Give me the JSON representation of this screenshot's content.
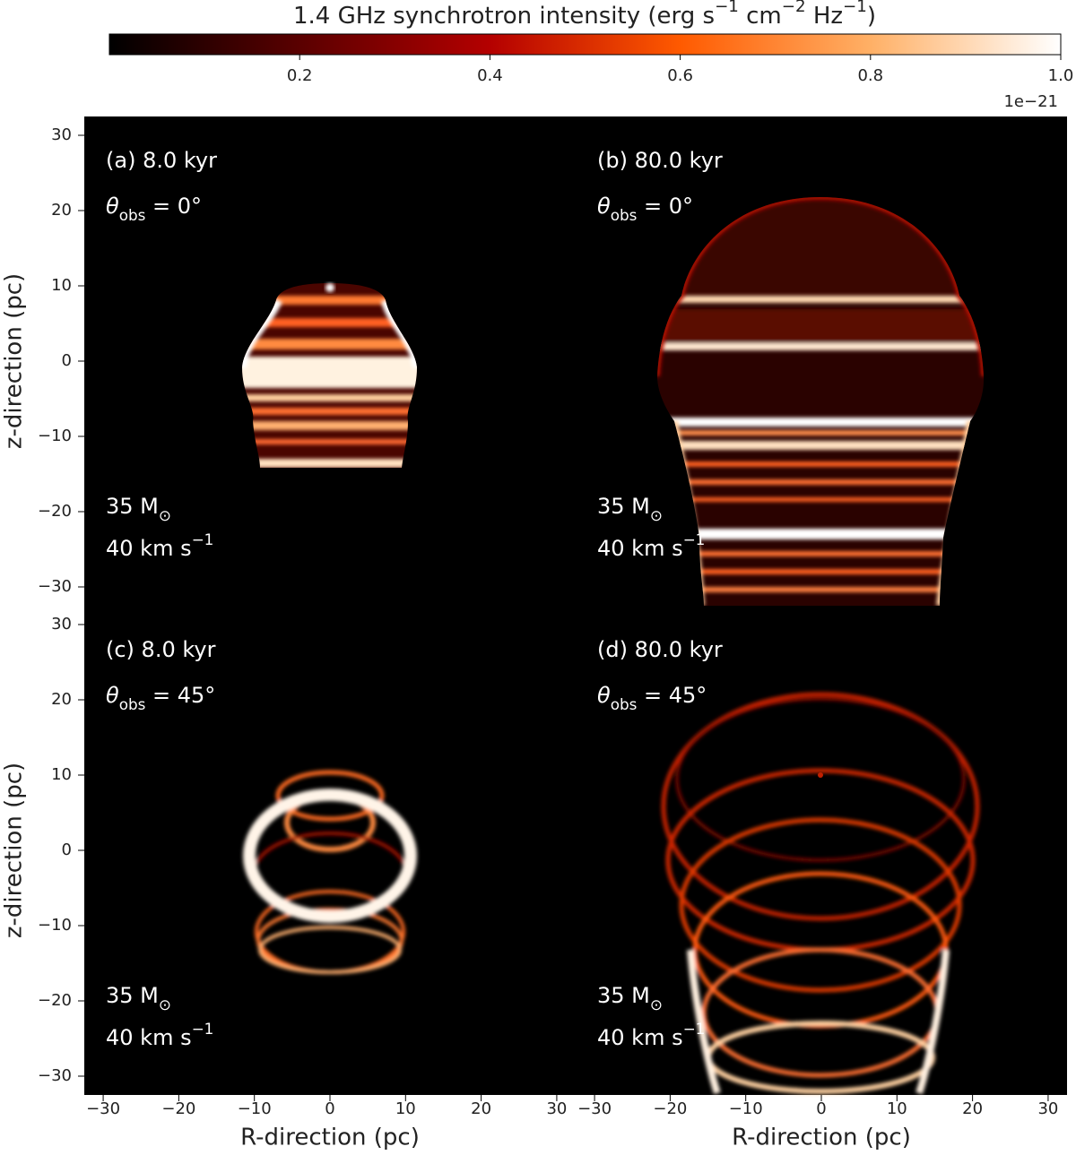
{
  "colorbar": {
    "label": [
      {
        "text": "1.4 GHz synchrotron intensity (erg s"
      },
      {
        "sup": "−1"
      },
      {
        "text": " cm"
      },
      {
        "sup": "−2"
      },
      {
        "text": " Hz"
      },
      {
        "sup": "−1"
      },
      {
        "text": ")"
      }
    ],
    "clim": [
      0,
      1.0
    ],
    "ticks": [
      0.2,
      0.4,
      0.6,
      0.8,
      {
        "value": 1.0,
        "label": "1.0"
      }
    ],
    "offset_label": "1e−21",
    "colors": [
      "#000000",
      "#5a0000",
      "#b40000",
      "#ff5a00",
      "#ffb066",
      "#ffffff"
    ]
  },
  "chart_data": [
    {
      "type": "image",
      "title": "(a) 8.0 kyr",
      "angle": [
        {
          "text": "θ"
        },
        {
          "sub": "obs"
        },
        {
          "text": " = 0°"
        }
      ],
      "mass": [
        {
          "text": "35 M"
        },
        {
          "sub": "⊙"
        }
      ],
      "velocity": [
        {
          "text": "40 km s"
        },
        {
          "sup": "−1"
        }
      ],
      "xlim": [
        -32.5,
        32.5
      ],
      "ylim": [
        -32.5,
        32.5
      ],
      "yticks": [
        {
          "value": -30,
          "label": "−30"
        },
        {
          "value": -20,
          "label": "−20"
        },
        {
          "value": -10,
          "label": "−10"
        },
        0,
        10,
        20,
        30
      ],
      "ylabel": "z-direction (pc)"
    },
    {
      "type": "image",
      "title": "(b) 80.0 kyr",
      "angle": [
        {
          "text": "θ"
        },
        {
          "sub": "obs"
        },
        {
          "text": " = 0°"
        }
      ],
      "mass": [
        {
          "text": "35 M"
        },
        {
          "sub": "⊙"
        }
      ],
      "velocity": [
        {
          "text": "40 km s"
        },
        {
          "sup": "−1"
        }
      ],
      "xlim": [
        -32.5,
        32.5
      ],
      "ylim": [
        -32.5,
        32.5
      ]
    },
    {
      "type": "image",
      "title": "(c) 8.0 kyr",
      "angle": [
        {
          "text": "θ"
        },
        {
          "sub": "obs"
        },
        {
          "text": " = 45°"
        }
      ],
      "mass": [
        {
          "text": "35 M"
        },
        {
          "sub": "⊙"
        }
      ],
      "velocity": [
        {
          "text": "40 km s"
        },
        {
          "sup": "−1"
        }
      ],
      "xlim": [
        -32.5,
        32.5
      ],
      "ylim": [
        -32.5,
        32.5
      ],
      "xticks": [
        {
          "value": -30,
          "label": "−30"
        },
        {
          "value": -20,
          "label": "−20"
        },
        {
          "value": -10,
          "label": "−10"
        },
        0,
        10,
        20,
        30
      ],
      "yticks": [
        {
          "value": -30,
          "label": "−30"
        },
        {
          "value": -20,
          "label": "−20"
        },
        {
          "value": -10,
          "label": "−10"
        },
        0,
        10,
        20,
        30
      ],
      "xlabel": "R-direction (pc)",
      "ylabel": "z-direction (pc)"
    },
    {
      "type": "image",
      "title": "(d) 80.0 kyr",
      "angle": [
        {
          "text": "θ"
        },
        {
          "sub": "obs"
        },
        {
          "text": " = 45°"
        }
      ],
      "mass": [
        {
          "text": "35 M"
        },
        {
          "sub": "⊙"
        }
      ],
      "velocity": [
        {
          "text": "40 km s"
        },
        {
          "sup": "−1"
        }
      ],
      "xlim": [
        -32.5,
        32.5
      ],
      "ylim": [
        -32.5,
        32.5
      ],
      "xticks": [
        {
          "value": -30,
          "label": "−30"
        },
        {
          "value": -20,
          "label": "−20"
        },
        {
          "value": -10,
          "label": "−10"
        },
        0,
        10,
        20,
        30
      ],
      "xlabel": "R-direction (pc)"
    }
  ]
}
